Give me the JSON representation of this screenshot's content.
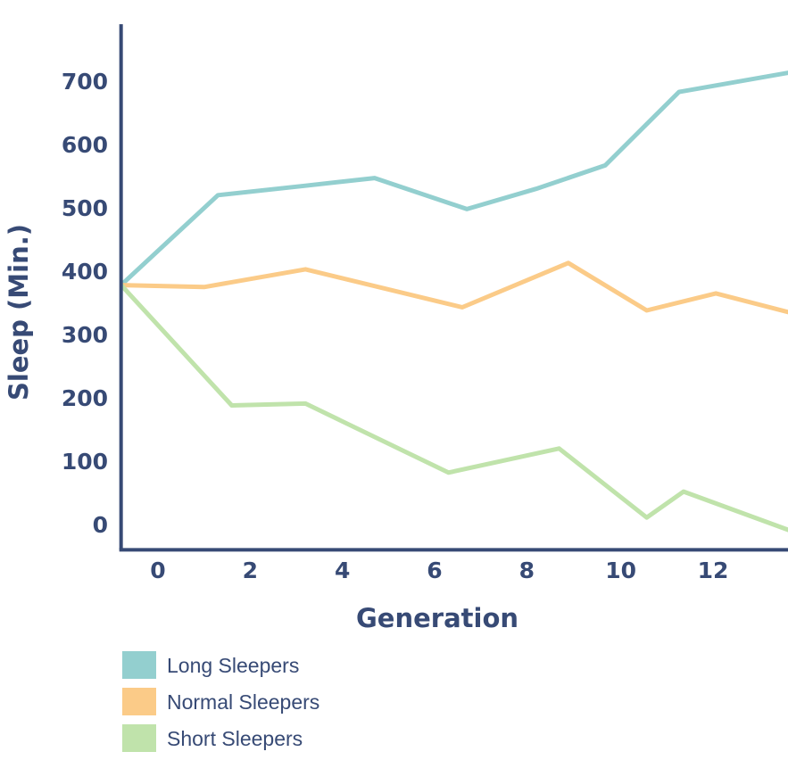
{
  "chart_data": {
    "type": "line",
    "title": "",
    "xlabel": "Generation",
    "ylabel": "Sleep (Min.)",
    "xlim": [
      -0.8,
      13.8
    ],
    "ylim": [
      -40,
      790
    ],
    "xticks": [
      0,
      2,
      4,
      6,
      8,
      10,
      12
    ],
    "yticks": [
      0,
      100,
      200,
      300,
      400,
      500,
      600,
      700
    ],
    "grid": false,
    "legend_position": "bottom-left",
    "series": [
      {
        "name": "Long Sleepers",
        "color": "#93cfcf",
        "x": [
          -0.8,
          1.3,
          3.2,
          4.7,
          6.7,
          8.2,
          9.7,
          11.3,
          13.8
        ],
        "y": [
          378,
          520,
          535,
          547,
          498,
          530,
          567,
          683,
          715
        ]
      },
      {
        "name": "Normal Sleepers",
        "color": "#fbcb88",
        "x": [
          -0.8,
          1.0,
          3.2,
          6.6,
          8.9,
          10.6,
          12.1,
          13.8
        ],
        "y": [
          378,
          375,
          403,
          343,
          413,
          338,
          365,
          333
        ]
      },
      {
        "name": "Short Sleepers",
        "color": "#c0e3ab",
        "x": [
          -0.8,
          1.6,
          3.2,
          6.3,
          8.7,
          10.6,
          11.4,
          13.8
        ],
        "y": [
          378,
          188,
          191,
          82,
          120,
          11,
          52,
          -12
        ]
      }
    ]
  }
}
